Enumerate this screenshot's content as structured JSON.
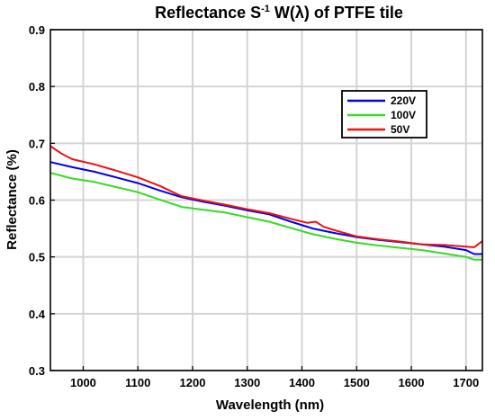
{
  "chart_data": {
    "type": "line",
    "title": {
      "main": "Reflectance S",
      "superscript": "-1",
      "rest": " W(λ) of PTFE tile"
    },
    "xlabel": "Wavelength (nm)",
    "ylabel": "Reflectance (%)",
    "xlim": [
      940,
      1730
    ],
    "ylim": [
      0.3,
      0.9
    ],
    "xticks": [
      1000,
      1100,
      1200,
      1300,
      1400,
      1500,
      1600,
      1700
    ],
    "xtick_labels": [
      "1000",
      "1100",
      "1200",
      "1300",
      "1400",
      "1500",
      "1600",
      "1700"
    ],
    "yticks": [
      0.3,
      0.4,
      0.5,
      0.6,
      0.7,
      0.8,
      0.9
    ],
    "ytick_labels": [
      "0.3",
      "0.4",
      "0.5",
      "0.6",
      "0.7",
      "0.8",
      "0.9"
    ],
    "grid": true,
    "legend_position": "top-right",
    "series": [
      {
        "name": "220V",
        "color": "#0000ee",
        "x": [
          940,
          980,
          1020,
          1060,
          1100,
          1140,
          1180,
          1220,
          1260,
          1300,
          1340,
          1380,
          1420,
          1460,
          1500,
          1540,
          1580,
          1620,
          1660,
          1700,
          1715,
          1730
        ],
        "y": [
          0.667,
          0.658,
          0.65,
          0.64,
          0.63,
          0.617,
          0.605,
          0.597,
          0.59,
          0.582,
          0.575,
          0.562,
          0.55,
          0.542,
          0.535,
          0.53,
          0.526,
          0.522,
          0.518,
          0.512,
          0.505,
          0.505
        ]
      },
      {
        "name": "100V",
        "color": "#33dd22",
        "x": [
          940,
          980,
          1020,
          1060,
          1100,
          1140,
          1180,
          1220,
          1260,
          1300,
          1340,
          1380,
          1420,
          1460,
          1500,
          1540,
          1580,
          1620,
          1660,
          1700,
          1715,
          1730
        ],
        "y": [
          0.648,
          0.638,
          0.632,
          0.623,
          0.614,
          0.601,
          0.588,
          0.583,
          0.578,
          0.57,
          0.562,
          0.551,
          0.54,
          0.532,
          0.525,
          0.52,
          0.516,
          0.512,
          0.506,
          0.5,
          0.495,
          0.495
        ]
      },
      {
        "name": "50V",
        "color": "#ee1111",
        "x": [
          940,
          960,
          980,
          1020,
          1060,
          1100,
          1140,
          1180,
          1220,
          1260,
          1300,
          1340,
          1380,
          1410,
          1425,
          1440,
          1460,
          1500,
          1540,
          1580,
          1620,
          1660,
          1700,
          1715,
          1730
        ],
        "y": [
          0.695,
          0.682,
          0.672,
          0.663,
          0.652,
          0.64,
          0.625,
          0.607,
          0.599,
          0.592,
          0.584,
          0.577,
          0.567,
          0.56,
          0.562,
          0.553,
          0.547,
          0.536,
          0.531,
          0.527,
          0.522,
          0.521,
          0.518,
          0.517,
          0.528
        ]
      }
    ]
  }
}
